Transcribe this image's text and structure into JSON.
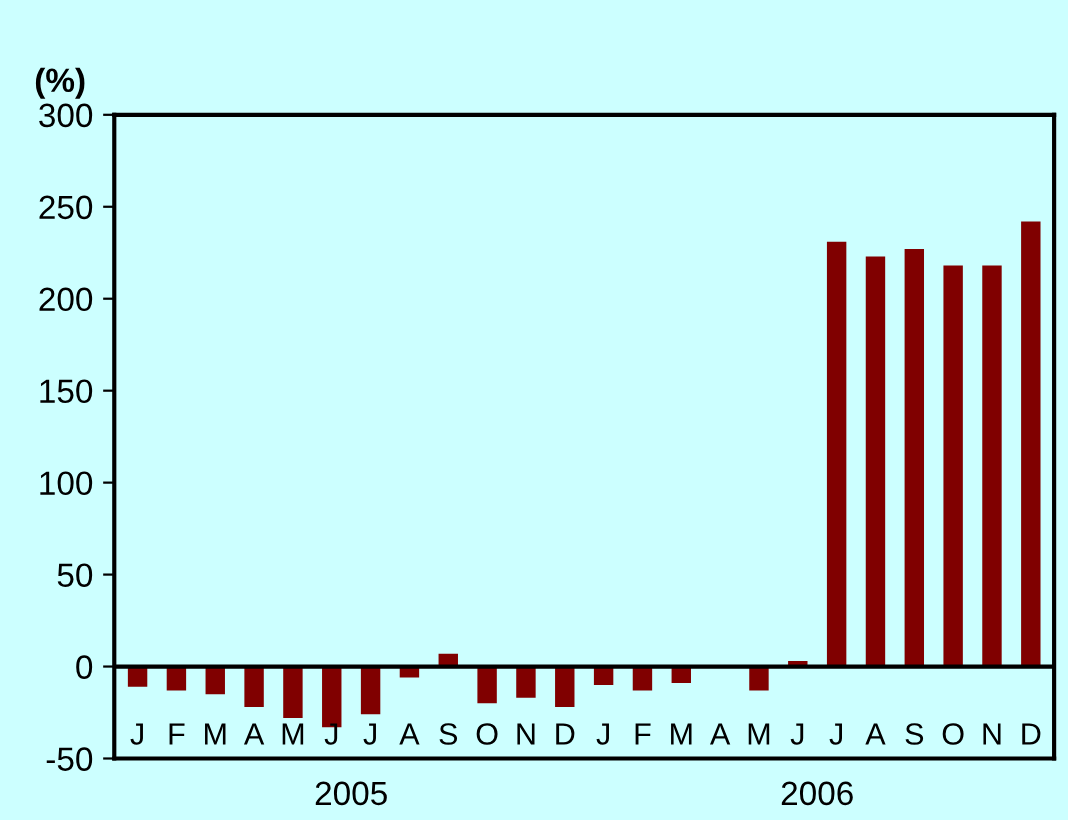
{
  "chart_data": {
    "type": "bar",
    "ylabel": "(%)",
    "categories": [
      "J",
      "F",
      "M",
      "A",
      "M",
      "J",
      "J",
      "A",
      "S",
      "O",
      "N",
      "D",
      "J",
      "F",
      "M",
      "A",
      "M",
      "J",
      "J",
      "A",
      "S",
      "O",
      "N",
      "D"
    ],
    "values": [
      -11,
      -13,
      -15,
      -22,
      -28,
      -33,
      -26,
      -6,
      7,
      -20,
      -17,
      -22,
      -10,
      -13,
      -9,
      0,
      -13,
      3,
      231,
      223,
      227,
      218,
      218,
      242
    ],
    "color": "#800000",
    "ylim": [
      -50,
      300
    ],
    "yticks": [
      -50,
      0,
      50,
      100,
      150,
      200,
      250,
      300
    ],
    "annotations": [
      "2005",
      "2006"
    ]
  }
}
